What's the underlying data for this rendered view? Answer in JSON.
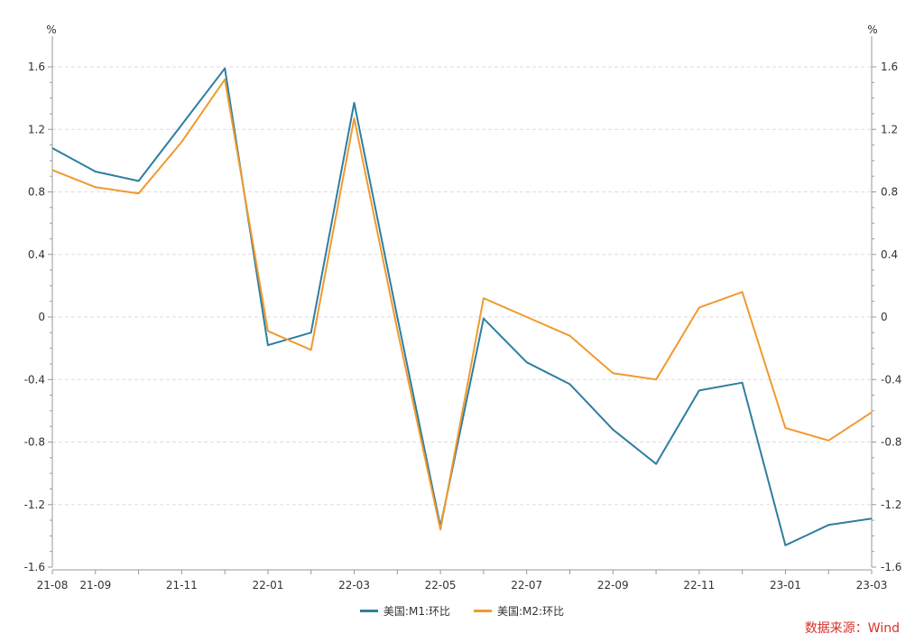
{
  "source": "数据来源：Wind",
  "colors": {
    "m1": "#2e7ea1",
    "m2": "#f09a2e",
    "grid": "#dddddd",
    "axis": "#999999",
    "source": "#d7332b"
  },
  "chart_data": {
    "type": "line",
    "title": "",
    "left_unit": "%",
    "right_unit": "%",
    "ylim": [
      -1.6,
      1.6
    ],
    "yticks": [
      "1.6",
      "1.2",
      "0.8",
      "0.4",
      "0",
      "-0.4",
      "-0.8",
      "-1.2",
      "-1.6"
    ],
    "ytick_values": [
      1.6,
      1.2,
      0.8,
      0.4,
      0,
      -0.4,
      -0.8,
      -1.2,
      -1.6
    ],
    "x": [
      "21-08",
      "21-09",
      "21-10",
      "21-11",
      "21-12",
      "22-01",
      "22-02",
      "22-03",
      "22-04",
      "22-05",
      "22-06",
      "22-07",
      "22-08",
      "22-09",
      "22-10",
      "22-11",
      "22-12",
      "23-01",
      "23-02",
      "23-03"
    ],
    "xtick_labels": [
      "21-08",
      "21-09",
      "",
      "21-11",
      "",
      "22-01",
      "",
      "22-03",
      "",
      "22-05",
      "",
      "22-07",
      "",
      "22-09",
      "",
      "22-11",
      "",
      "23-01",
      "",
      "23-03"
    ],
    "grid": true,
    "legend_position": "bottom",
    "series": [
      {
        "name": "美国:M1:环比",
        "key": "m1",
        "values": [
          1.08,
          0.93,
          0.87,
          1.23,
          1.59,
          -0.18,
          -0.1,
          1.37,
          0.0,
          -1.34,
          -0.01,
          -0.29,
          -0.43,
          -0.72,
          -0.94,
          -0.47,
          -0.42,
          -1.46,
          -1.33,
          -1.29
        ]
      },
      {
        "name": "美国:M2:环比",
        "key": "m2",
        "values": [
          0.94,
          0.83,
          0.79,
          1.12,
          1.52,
          -0.09,
          -0.21,
          1.27,
          -0.08,
          -1.36,
          0.12,
          0.0,
          -0.12,
          -0.36,
          -0.4,
          0.06,
          0.16,
          -0.71,
          -0.79,
          -0.61
        ]
      }
    ]
  }
}
